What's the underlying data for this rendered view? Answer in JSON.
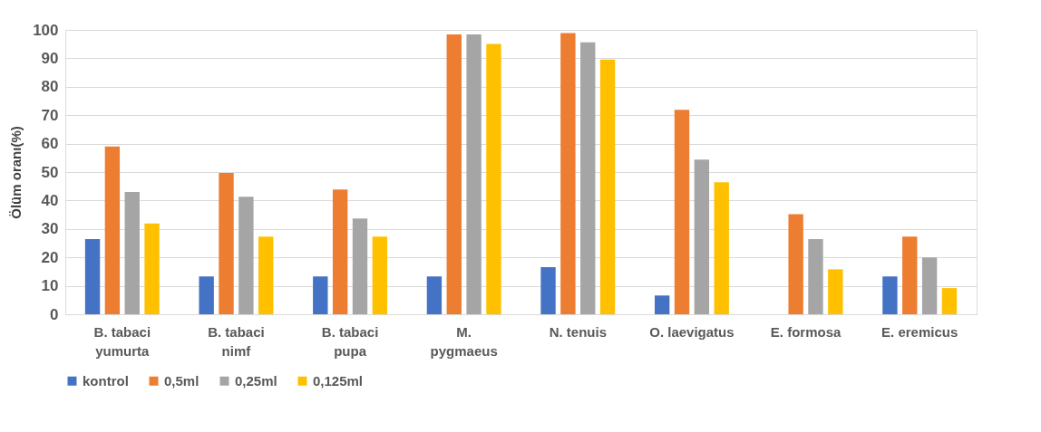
{
  "chart_data": {
    "type": "bar",
    "ylabel": "Ölüm oranı(%)",
    "categories": [
      "B. tabaci\nyumurta",
      "B. tabaci\nnimf",
      "B. tabaci\npupa",
      "M.\npygmaeus",
      "N. tenuis",
      "O. laevigatus",
      "E. formosa",
      "E. eremicus"
    ],
    "series": [
      {
        "name": "kontrol",
        "color": "#4472c4",
        "values": [
          26.4,
          13.3,
          13.3,
          13.3,
          16.6,
          6.6,
          0,
          13.3
        ]
      },
      {
        "name": "0,5ml",
        "color": "#ed7d31",
        "values": [
          59.0,
          49.7,
          43.9,
          98.4,
          98.9,
          71.9,
          35.2,
          27.3
        ]
      },
      {
        "name": "0,25ml",
        "color": "#a5a5a5",
        "values": [
          43.0,
          41.3,
          33.7,
          98.4,
          95.6,
          54.4,
          26.4,
          20.0
        ]
      },
      {
        "name": "0,125ml",
        "color": "#ffc000",
        "values": [
          31.9,
          27.3,
          27.3,
          95.1,
          89.6,
          46.4,
          15.8,
          9.2
        ]
      }
    ],
    "ylim": [
      0,
      100
    ],
    "yticks": [
      0,
      10,
      20,
      30,
      40,
      50,
      60,
      70,
      80,
      90,
      100
    ],
    "grid": "y",
    "legend": "bottom"
  }
}
